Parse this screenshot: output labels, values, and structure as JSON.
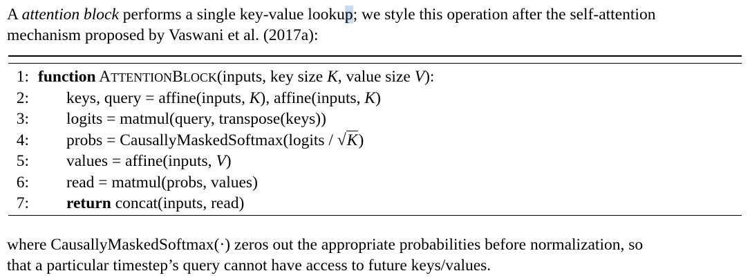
{
  "intro": {
    "prefix": "A ",
    "term": "attention block",
    "middle": " performs a single key-value looku",
    "caret_char": "p",
    "rest1": "; we style this operation after the self-attention",
    "line2": "mechanism proposed by Vaswani et al. (2017a):"
  },
  "algorithm": {
    "lines": [
      {
        "num": "1:",
        "keyword": "function",
        "name_cap1": "A",
        "name_sc1": "TTENTION",
        "name_cap2": "B",
        "name_sc2": "LOCK",
        "args_a": "(inputs, key size ",
        "var_k": "K",
        "args_b": ", value size ",
        "var_v": "V",
        "args_c": "):"
      },
      {
        "num": "2:",
        "text_a": "keys, query = affine(inputs, ",
        "var1": "K",
        "text_b": "), affine(inputs, ",
        "var2": "K",
        "text_c": ")"
      },
      {
        "num": "3:",
        "text": "logits = matmul(query, transpose(keys))"
      },
      {
        "num": "4:",
        "text_a": "probs = CausallyMaskedSoftmax(logits / ",
        "radical": "√",
        "var": "K",
        "text_b": ")"
      },
      {
        "num": "5:",
        "text_a": "values = affine(inputs, ",
        "var": "V",
        "text_b": ")"
      },
      {
        "num": "6:",
        "text": "read = matmul(probs, values)"
      },
      {
        "num": "7:",
        "keyword": "return",
        "text": " concat(inputs, read)"
      }
    ]
  },
  "outro": {
    "line1_a": "where CausallyMaskedSoftmax",
    "line1_arg": "(·)",
    "line1_b": " zeros out the appropriate probabilities before normalization, so",
    "line2": "that a particular timestep’s query cannot have access to future keys/values."
  }
}
